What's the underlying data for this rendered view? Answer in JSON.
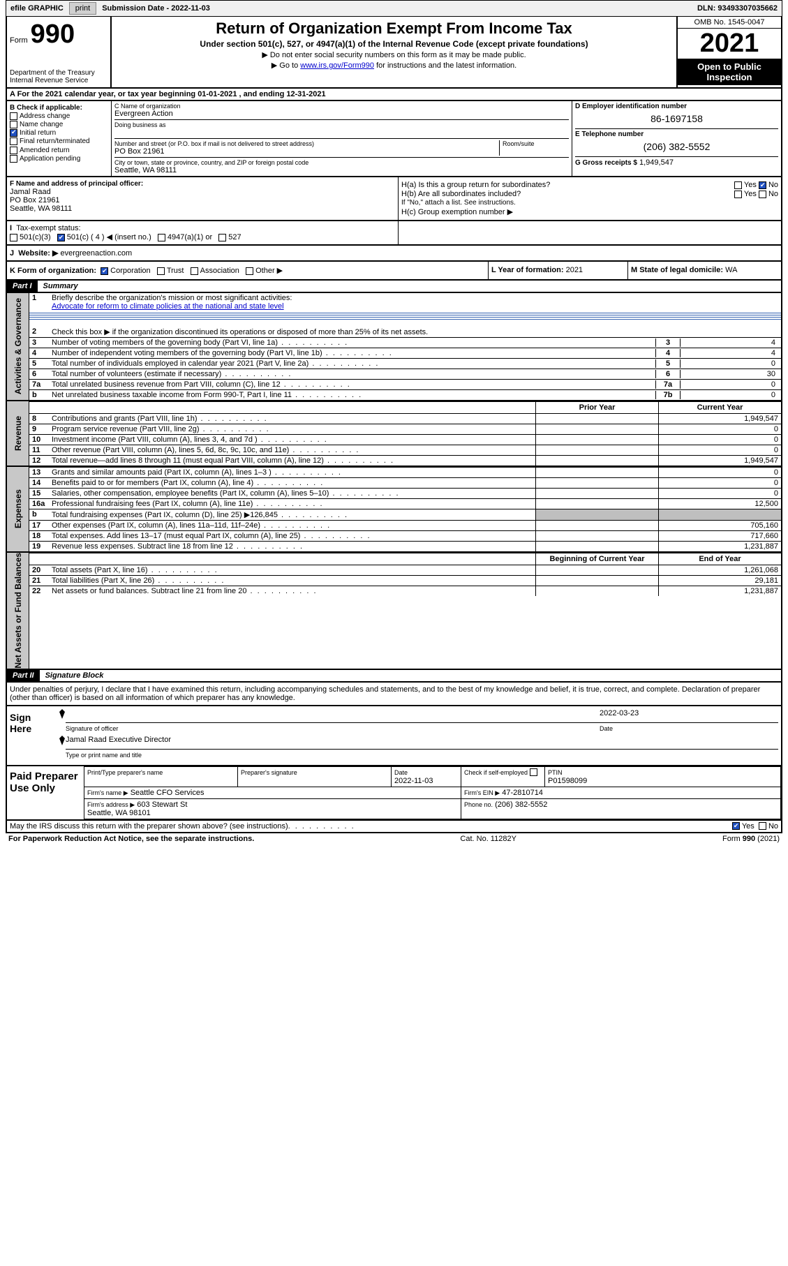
{
  "topbar": {
    "efile_label": "efile GRAPHIC",
    "print": "print",
    "submission_label": "Submission Date - 2022-11-03",
    "dln": "DLN: 93493307035662"
  },
  "header": {
    "form_word": "Form",
    "form_num": "990",
    "dept": "Department of the Treasury\nInternal Revenue Service",
    "title": "Return of Organization Exempt From Income Tax",
    "sub": "Under section 501(c), 527, or 4947(a)(1) of the Internal Revenue Code (except private foundations)",
    "note1": "Do not enter social security numbers on this form as it may be made public.",
    "note2_pre": "Go to ",
    "note2_link": "www.irs.gov/Form990",
    "note2_post": " for instructions and the latest information.",
    "omb": "OMB No. 1545-0047",
    "year": "2021",
    "open": "Open to Public Inspection"
  },
  "row_a": "A For the 2021 calendar year, or tax year beginning 01-01-2021   , and ending 12-31-2021",
  "B": {
    "label": "B Check if applicable:",
    "addr": "Address change",
    "name": "Name change",
    "initial": "Initial return",
    "final": "Final return/terminated",
    "amended": "Amended return",
    "app": "Application pending"
  },
  "C": {
    "name_lbl": "C Name of organization",
    "name": "Evergreen Action",
    "dba_lbl": "Doing business as",
    "street_lbl": "Number and street (or P.O. box if mail is not delivered to street address)",
    "room_lbl": "Room/suite",
    "street": "PO Box 21961",
    "city_lbl": "City or town, state or province, country, and ZIP or foreign postal code",
    "city": "Seattle, WA  98111"
  },
  "D": {
    "lbl": "D Employer identification number",
    "val": "86-1697158"
  },
  "E": {
    "lbl": "E Telephone number",
    "val": "(206) 382-5552"
  },
  "G": {
    "lbl": "G Gross receipts $",
    "val": "1,949,547"
  },
  "F": {
    "lbl": "F Name and address of principal officer:",
    "name": "Jamal Raad",
    "street": "PO Box 21961",
    "city": "Seattle, WA  98111"
  },
  "H": {
    "a": "H(a)  Is this a group return for subordinates?",
    "b": "H(b)  Are all subordinates included?",
    "note": "If \"No,\" attach a list. See instructions.",
    "c": "H(c)  Group exemption number ▶",
    "yes": "Yes",
    "no": "No"
  },
  "I": {
    "lbl": "Tax-exempt status:",
    "o1": "501(c)(3)",
    "o2": "501(c) ( 4 ) ◀ (insert no.)",
    "o3": "4947(a)(1) or",
    "o4": "527"
  },
  "J": {
    "lbl": "Website: ▶",
    "val": "evergreenaction.com"
  },
  "K": {
    "lbl": "K Form of organization:",
    "corp": "Corporation",
    "trust": "Trust",
    "assoc": "Association",
    "other": "Other ▶"
  },
  "L": {
    "lbl": "L Year of formation:",
    "val": "2021"
  },
  "M": {
    "lbl": "M State of legal domicile:",
    "val": "WA"
  },
  "part1": {
    "num": "Part I",
    "title": "Summary",
    "vlabels": [
      "Activities & Governance",
      "Revenue",
      "Expenses",
      "Net Assets or Fund Balances"
    ],
    "l1_lbl": "Briefly describe the organization's mission or most significant activities:",
    "l1_val": "Advocate for reform to climate policies at the national and state level",
    "l2": "Check this box ▶     if the organization discontinued its operations or disposed of more than 25% of its net assets.",
    "lines_num": [
      {
        "n": "3",
        "t": "Number of voting members of the governing body (Part VI, line 1a)",
        "box": "3",
        "v": "4"
      },
      {
        "n": "4",
        "t": "Number of independent voting members of the governing body (Part VI, line 1b)",
        "box": "4",
        "v": "4"
      },
      {
        "n": "5",
        "t": "Total number of individuals employed in calendar year 2021 (Part V, line 2a)",
        "box": "5",
        "v": "0"
      },
      {
        "n": "6",
        "t": "Total number of volunteers (estimate if necessary)",
        "box": "6",
        "v": "30"
      },
      {
        "n": "7a",
        "t": "Total unrelated business revenue from Part VIII, column (C), line 12",
        "box": "7a",
        "v": "0"
      },
      {
        "n": "b",
        "t": "Net unrelated business taxable income from Form 990-T, Part I, line 11",
        "box": "7b",
        "v": "0"
      }
    ],
    "py": "Prior Year",
    "cy": "Current Year",
    "rev": [
      {
        "n": "8",
        "t": "Contributions and grants (Part VIII, line 1h)",
        "p": "",
        "c": "1,949,547"
      },
      {
        "n": "9",
        "t": "Program service revenue (Part VIII, line 2g)",
        "p": "",
        "c": "0"
      },
      {
        "n": "10",
        "t": "Investment income (Part VIII, column (A), lines 3, 4, and 7d )",
        "p": "",
        "c": "0"
      },
      {
        "n": "11",
        "t": "Other revenue (Part VIII, column (A), lines 5, 6d, 8c, 9c, 10c, and 11e)",
        "p": "",
        "c": "0"
      },
      {
        "n": "12",
        "t": "Total revenue—add lines 8 through 11 (must equal Part VIII, column (A), line 12)",
        "p": "",
        "c": "1,949,547"
      }
    ],
    "exp": [
      {
        "n": "13",
        "t": "Grants and similar amounts paid (Part IX, column (A), lines 1–3 )",
        "p": "",
        "c": "0"
      },
      {
        "n": "14",
        "t": "Benefits paid to or for members (Part IX, column (A), line 4)",
        "p": "",
        "c": "0"
      },
      {
        "n": "15",
        "t": "Salaries, other compensation, employee benefits (Part IX, column (A), lines 5–10)",
        "p": "",
        "c": "0"
      },
      {
        "n": "16a",
        "t": "Professional fundraising fees (Part IX, column (A), line 11e)",
        "p": "",
        "c": "12,500"
      },
      {
        "n": "b",
        "t": "Total fundraising expenses (Part IX, column (D), line 25) ▶126,845",
        "p": "shade",
        "c": "shade"
      },
      {
        "n": "17",
        "t": "Other expenses (Part IX, column (A), lines 11a–11d, 11f–24e)",
        "p": "",
        "c": "705,160"
      },
      {
        "n": "18",
        "t": "Total expenses. Add lines 13–17 (must equal Part IX, column (A), line 25)",
        "p": "",
        "c": "717,660"
      },
      {
        "n": "19",
        "t": "Revenue less expenses. Subtract line 18 from line 12",
        "p": "",
        "c": "1,231,887"
      }
    ],
    "by": "Beginning of Current Year",
    "ey": "End of Year",
    "net": [
      {
        "n": "20",
        "t": "Total assets (Part X, line 16)",
        "p": "",
        "c": "1,261,068"
      },
      {
        "n": "21",
        "t": "Total liabilities (Part X, line 26)",
        "p": "",
        "c": "29,181"
      },
      {
        "n": "22",
        "t": "Net assets or fund balances. Subtract line 21 from line 20",
        "p": "",
        "c": "1,231,887"
      }
    ]
  },
  "part2": {
    "num": "Part II",
    "title": "Signature Block",
    "decl": "Under penalties of perjury, I declare that I have examined this return, including accompanying schedules and statements, and to the best of my knowledge and belief, it is true, correct, and complete. Declaration of preparer (other than officer) is based on all information of which preparer has any knowledge.",
    "sign_here": "Sign Here",
    "sig_cap": "Signature of officer",
    "date_cap": "Date",
    "date_val": "2022-03-23",
    "name_title": "Jamal Raad  Executive Director",
    "name_cap": "Type or print name and title",
    "paid": "Paid Preparer Use Only",
    "pt_name_lbl": "Print/Type preparer's name",
    "pt_sig_lbl": "Preparer's signature",
    "pt_date_lbl": "Date",
    "pt_date": "2022-11-03",
    "pt_check_lbl": "Check        if self-employed",
    "ptin_lbl": "PTIN",
    "ptin": "P01598099",
    "firm_name_lbl": "Firm's name    ▶",
    "firm_name": "Seattle CFO Services",
    "firm_ein_lbl": "Firm's EIN ▶",
    "firm_ein": "47-2810714",
    "firm_addr_lbl": "Firm's address ▶",
    "firm_addr": "603 Stewart St",
    "firm_city": "Seattle, WA  98101",
    "phone_lbl": "Phone no.",
    "phone": "(206) 382-5552"
  },
  "may": {
    "q": "May the IRS discuss this return with the preparer shown above? (see instructions)",
    "yes": "Yes",
    "no": "No"
  },
  "footer": {
    "l": "For Paperwork Reduction Act Notice, see the separate instructions.",
    "m": "Cat. No. 11282Y",
    "r_pre": "Form ",
    "r_b": "990",
    "r_post": " (2021)"
  }
}
